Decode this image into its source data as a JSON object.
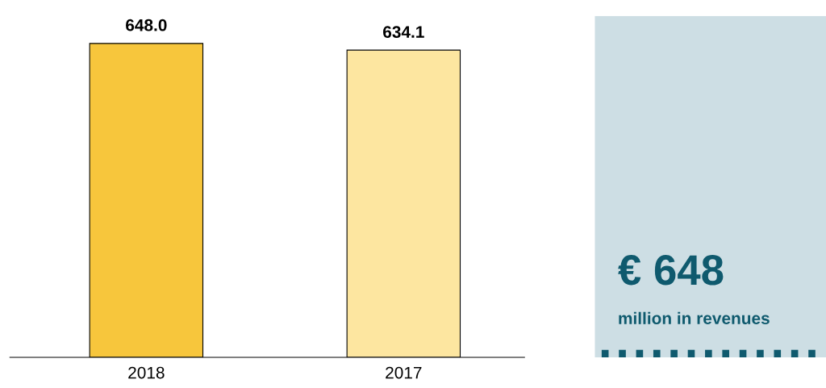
{
  "chart_data": [
    {
      "type": "bar",
      "categories": [
        "2018",
        "2017"
      ],
      "values": [
        648.0,
        634.1
      ],
      "colors": [
        "#f7c63c",
        "#fde6a0"
      ],
      "value_labels": [
        "648.0",
        "634.1"
      ],
      "grid": false,
      "legend": false
    },
    {
      "type": "other",
      "title": "€ 648",
      "subtitle": "million in revenues",
      "color": "#cddee4"
    }
  ]
}
